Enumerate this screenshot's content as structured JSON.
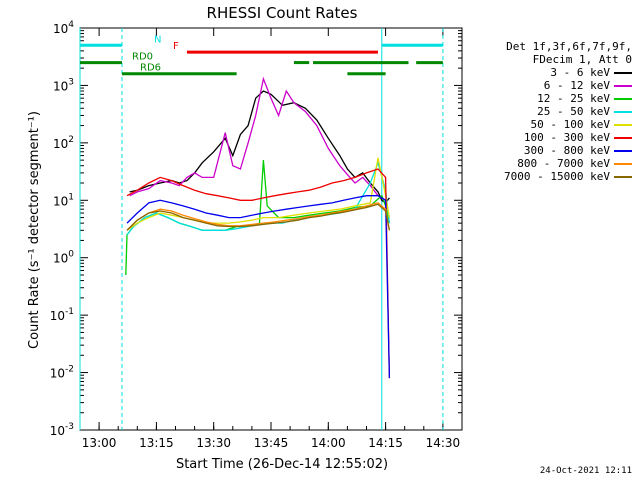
{
  "chart_data": {
    "type": "line",
    "title": "RHESSI Count Rates",
    "xlabel": "Start Time (26-Dec-14 12:55:02)",
    "ylabel": "Count Rate (s⁻¹ detector segment⁻¹)",
    "x_unit": "minutes after 12:55:02",
    "xlim": [
      0,
      100
    ],
    "ylim": [
      0.001,
      10000
    ],
    "yscale": "log",
    "x_ticks": [
      {
        "x": 5,
        "label": "13:00"
      },
      {
        "x": 20,
        "label": "13:15"
      },
      {
        "x": 35,
        "label": "13:30"
      },
      {
        "x": 50,
        "label": "13:45"
      },
      {
        "x": 65,
        "label": "14:00"
      },
      {
        "x": 80,
        "label": "14:15"
      },
      {
        "x": 95,
        "label": "14:30"
      }
    ],
    "y_ticks": [
      {
        "exp": -3,
        "label": "10"
      },
      {
        "exp": -2,
        "label": "10"
      },
      {
        "exp": -1,
        "label": "10"
      },
      {
        "exp": 0,
        "label": "10"
      },
      {
        "exp": 1,
        "label": "10"
      },
      {
        "exp": 2,
        "label": "10"
      },
      {
        "exp": 3,
        "label": "10"
      },
      {
        "exp": 4,
        "label": "10"
      }
    ],
    "legend_title": [
      "Det 1f,3f,6f,7f,9f,",
      "FDecim 1, Att 0"
    ],
    "legend_placement": "right",
    "series": [
      {
        "name": "3 - 6 keV",
        "color": "#000000",
        "points": [
          [
            13,
            14
          ],
          [
            15,
            15
          ],
          [
            18,
            18
          ],
          [
            21,
            20
          ],
          [
            24,
            22
          ],
          [
            26,
            20
          ],
          [
            28,
            22
          ],
          [
            30,
            30
          ],
          [
            32,
            45
          ],
          [
            35,
            70
          ],
          [
            38,
            120
          ],
          [
            40,
            60
          ],
          [
            42,
            140
          ],
          [
            44,
            200
          ],
          [
            46,
            600
          ],
          [
            48,
            800
          ],
          [
            50,
            700
          ],
          [
            53,
            450
          ],
          [
            56,
            500
          ],
          [
            59,
            400
          ],
          [
            62,
            250
          ],
          [
            65,
            120
          ],
          [
            68,
            60
          ],
          [
            70,
            35
          ],
          [
            72,
            25
          ],
          [
            74,
            30
          ],
          [
            76,
            20
          ],
          [
            78,
            14
          ],
          [
            79,
            10
          ],
          [
            80,
            9
          ],
          [
            81,
            11
          ]
        ]
      },
      {
        "name": "6 - 12 keV",
        "color": "#cc00cc",
        "points": [
          [
            13,
            12
          ],
          [
            15,
            14
          ],
          [
            18,
            16
          ],
          [
            21,
            22
          ],
          [
            24,
            20
          ],
          [
            26,
            18
          ],
          [
            28,
            25
          ],
          [
            30,
            30
          ],
          [
            32,
            25
          ],
          [
            35,
            25
          ],
          [
            38,
            150
          ],
          [
            40,
            40
          ],
          [
            42,
            35
          ],
          [
            44,
            100
          ],
          [
            46,
            300
          ],
          [
            48,
            1300
          ],
          [
            50,
            600
          ],
          [
            52,
            300
          ],
          [
            54,
            800
          ],
          [
            56,
            500
          ],
          [
            59,
            350
          ],
          [
            62,
            200
          ],
          [
            65,
            80
          ],
          [
            68,
            40
          ],
          [
            70,
            28
          ],
          [
            72,
            20
          ],
          [
            74,
            25
          ],
          [
            76,
            18
          ],
          [
            78,
            12
          ],
          [
            80,
            10
          ]
        ]
      },
      {
        "name": "12 - 25 keV",
        "color": "#00cc00",
        "points": [
          [
            12,
            0.5
          ],
          [
            12.3,
            2.5
          ],
          [
            14,
            3.5
          ],
          [
            17,
            5
          ],
          [
            20,
            6
          ],
          [
            23,
            5
          ],
          [
            26,
            4
          ],
          [
            29,
            3.5
          ],
          [
            32,
            3
          ],
          [
            35,
            3
          ],
          [
            38,
            3
          ],
          [
            41,
            3.5
          ],
          [
            44,
            3.5
          ],
          [
            47,
            4
          ],
          [
            48,
            50
          ],
          [
            49,
            8
          ],
          [
            52,
            5
          ],
          [
            56,
            5
          ],
          [
            60,
            5.5
          ],
          [
            64,
            6
          ],
          [
            68,
            6.5
          ],
          [
            72,
            7.5
          ],
          [
            76,
            8
          ],
          [
            79,
            12
          ],
          [
            80,
            8
          ],
          [
            81,
            4
          ]
        ]
      },
      {
        "name": "25 - 50 keV",
        "color": "#00e0e0",
        "points": [
          [
            12.3,
            2.5
          ],
          [
            14,
            3.5
          ],
          [
            17,
            5
          ],
          [
            20,
            6
          ],
          [
            23,
            5
          ],
          [
            26,
            4
          ],
          [
            29,
            3.5
          ],
          [
            32,
            3
          ],
          [
            35,
            3
          ],
          [
            38,
            3
          ],
          [
            41,
            3.2
          ],
          [
            44,
            3.5
          ],
          [
            47,
            3.8
          ],
          [
            50,
            4
          ],
          [
            53,
            4
          ],
          [
            56,
            4.5
          ],
          [
            60,
            5
          ],
          [
            64,
            5.5
          ],
          [
            68,
            6
          ],
          [
            72,
            7
          ],
          [
            76,
            20
          ],
          [
            78,
            45
          ],
          [
            80,
            15
          ],
          [
            81,
            4
          ]
        ]
      },
      {
        "name": "50 - 100 keV",
        "color": "#e0e000",
        "points": [
          [
            12.3,
            3
          ],
          [
            15,
            4
          ],
          [
            18,
            5
          ],
          [
            21,
            6
          ],
          [
            24,
            5.5
          ],
          [
            27,
            5
          ],
          [
            30,
            4.5
          ],
          [
            33,
            4
          ],
          [
            36,
            4
          ],
          [
            39,
            4
          ],
          [
            42,
            4.2
          ],
          [
            45,
            4.5
          ],
          [
            48,
            5
          ],
          [
            52,
            5
          ],
          [
            56,
            5.5
          ],
          [
            60,
            6
          ],
          [
            64,
            6.5
          ],
          [
            68,
            7
          ],
          [
            72,
            8
          ],
          [
            76,
            9
          ],
          [
            78,
            55
          ],
          [
            80,
            12
          ],
          [
            81,
            5
          ]
        ]
      },
      {
        "name": "100 - 300 keV",
        "color": "#ee0000",
        "points": [
          [
            12.3,
            12
          ],
          [
            15,
            15
          ],
          [
            18,
            20
          ],
          [
            21,
            25
          ],
          [
            24,
            22
          ],
          [
            27,
            18
          ],
          [
            30,
            15
          ],
          [
            33,
            13
          ],
          [
            36,
            12
          ],
          [
            39,
            11
          ],
          [
            42,
            10
          ],
          [
            45,
            10
          ],
          [
            48,
            11
          ],
          [
            51,
            12
          ],
          [
            54,
            13
          ],
          [
            57,
            14
          ],
          [
            60,
            15
          ],
          [
            63,
            17
          ],
          [
            66,
            20
          ],
          [
            69,
            22
          ],
          [
            72,
            25
          ],
          [
            75,
            30
          ],
          [
            78,
            35
          ],
          [
            80,
            25
          ],
          [
            81,
            0.008
          ]
        ]
      },
      {
        "name": "300 - 800 keV",
        "color": "#0000ee",
        "points": [
          [
            12.3,
            4
          ],
          [
            15,
            6
          ],
          [
            18,
            9
          ],
          [
            21,
            10
          ],
          [
            24,
            9
          ],
          [
            27,
            8
          ],
          [
            30,
            7
          ],
          [
            33,
            6
          ],
          [
            36,
            5.5
          ],
          [
            39,
            5
          ],
          [
            42,
            5
          ],
          [
            45,
            5.5
          ],
          [
            48,
            6
          ],
          [
            51,
            6.5
          ],
          [
            54,
            7
          ],
          [
            57,
            7.5
          ],
          [
            60,
            8
          ],
          [
            63,
            8.5
          ],
          [
            66,
            9
          ],
          [
            69,
            10
          ],
          [
            72,
            11
          ],
          [
            75,
            12
          ],
          [
            78,
            12
          ],
          [
            80,
            10
          ],
          [
            81,
            0.008
          ]
        ]
      },
      {
        "name": "800 - 7000 keV",
        "color": "#ff8800",
        "points": [
          [
            12.3,
            3
          ],
          [
            15,
            4.5
          ],
          [
            18,
            6
          ],
          [
            21,
            7
          ],
          [
            24,
            6.5
          ],
          [
            27,
            5.5
          ],
          [
            30,
            4.8
          ],
          [
            33,
            4.2
          ],
          [
            36,
            3.8
          ],
          [
            39,
            3.6
          ],
          [
            42,
            3.6
          ],
          [
            45,
            3.8
          ],
          [
            48,
            4
          ],
          [
            51,
            4.2
          ],
          [
            54,
            4.5
          ],
          [
            57,
            4.8
          ],
          [
            60,
            5.2
          ],
          [
            63,
            5.5
          ],
          [
            66,
            6
          ],
          [
            69,
            6.5
          ],
          [
            72,
            7
          ],
          [
            75,
            8
          ],
          [
            78,
            9
          ],
          [
            80,
            7
          ],
          [
            81,
            3
          ]
        ]
      },
      {
        "name": "7000 - 15000 keV",
        "color": "#886600",
        "points": [
          [
            12.3,
            3
          ],
          [
            15,
            4.5
          ],
          [
            18,
            6
          ],
          [
            21,
            6.5
          ],
          [
            24,
            6
          ],
          [
            27,
            5
          ],
          [
            30,
            4.5
          ],
          [
            33,
            4
          ],
          [
            36,
            3.6
          ],
          [
            39,
            3.5
          ],
          [
            42,
            3.5
          ],
          [
            45,
            3.6
          ],
          [
            48,
            3.8
          ],
          [
            51,
            4
          ],
          [
            54,
            4.2
          ],
          [
            57,
            4.5
          ],
          [
            60,
            5
          ],
          [
            63,
            5.3
          ],
          [
            66,
            5.8
          ],
          [
            69,
            6.2
          ],
          [
            72,
            6.8
          ],
          [
            75,
            7.5
          ],
          [
            78,
            8.5
          ],
          [
            80,
            6.5
          ],
          [
            81,
            3
          ]
        ]
      }
    ],
    "flag_bars": [
      {
        "label": "N",
        "color": "#00e0e0",
        "level": 5000,
        "spans": [
          [
            0,
            11
          ],
          [
            79,
            95
          ]
        ]
      },
      {
        "label": "F",
        "color": "#ee0000",
        "level": 3800,
        "spans": [
          [
            28,
            78
          ]
        ]
      },
      {
        "label": "RD0",
        "color": "#008800",
        "level": 2500,
        "spans": [
          [
            0,
            11
          ],
          [
            56,
            60
          ],
          [
            61,
            86
          ],
          [
            88,
            95
          ]
        ]
      },
      {
        "label": "RD6",
        "color": "#008800",
        "level": 1600,
        "spans": [
          [
            11,
            41
          ],
          [
            70,
            80
          ]
        ]
      }
    ],
    "vlines": [
      {
        "x": 0,
        "color": "#00e0e0",
        "style": "solid"
      },
      {
        "x": 11,
        "color": "#00e0e0",
        "style": "dashed"
      },
      {
        "x": 79,
        "color": "#00e0e0",
        "style": "solid"
      },
      {
        "x": 95,
        "color": "#00e0e0",
        "style": "dashed"
      }
    ]
  },
  "footer": {
    "timestamp": "24-Oct-2021 12:11"
  }
}
